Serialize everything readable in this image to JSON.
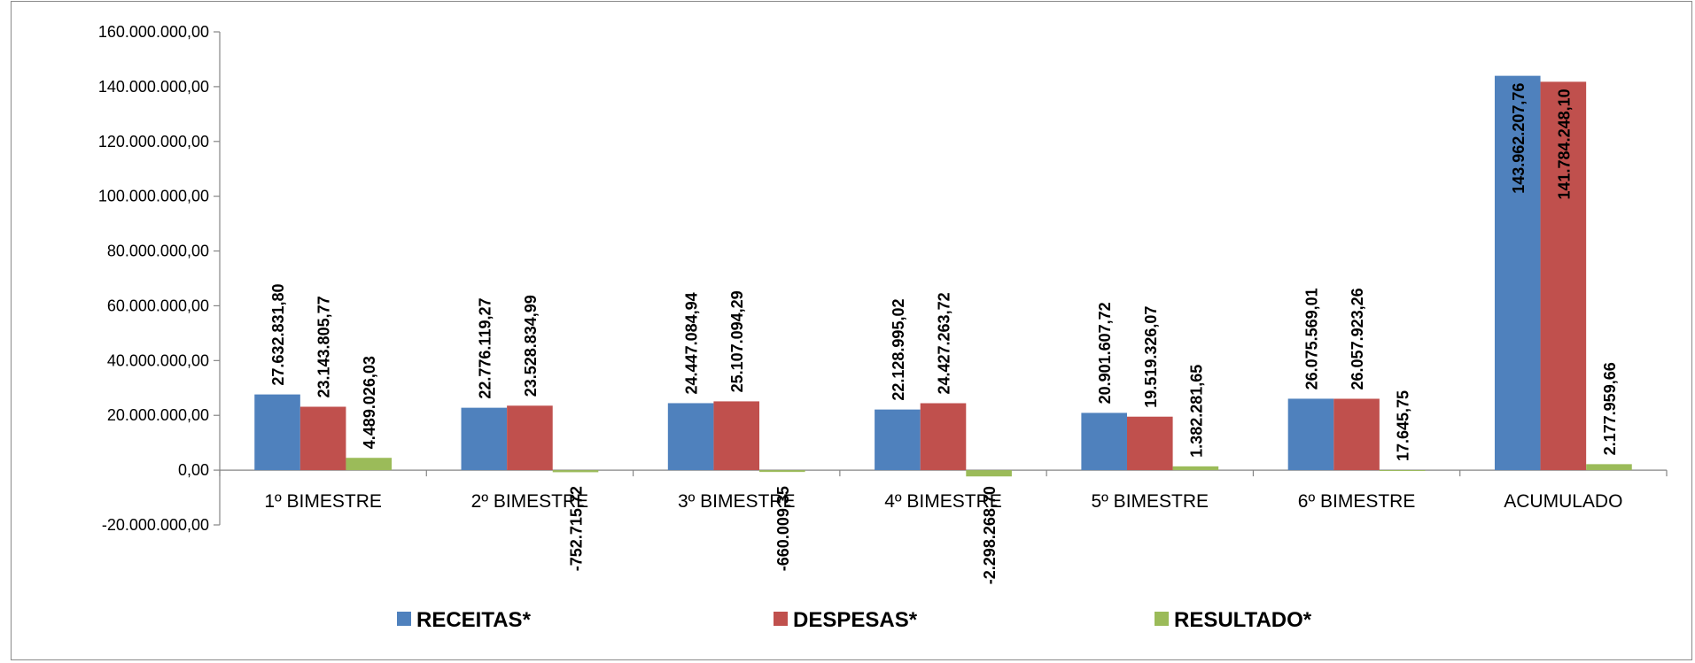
{
  "chart_data": {
    "type": "bar",
    "categories": [
      "1º BIMESTRE",
      "2º BIMESTRE",
      "3º BIMESTRE",
      "4º BIMESTRE",
      "5º BIMESTRE",
      "6º BIMESTRE",
      "ACUMULADO"
    ],
    "series": [
      {
        "name": "RECEITAS*",
        "color": "#4F81BD",
        "values": [
          27632831.8,
          22776119.27,
          24447084.94,
          22128995.02,
          20901607.72,
          26075569.01,
          143962207.76
        ],
        "labels": [
          "27.632.831,80",
          "22.776.119,27",
          "24.447.084,94",
          "22.128.995,02",
          "20.901.607,72",
          "26.075.569,01",
          "143.962.207,76"
        ]
      },
      {
        "name": "DESPESAS*",
        "color": "#C0504D",
        "values": [
          23143805.77,
          23528834.99,
          25107094.29,
          24427263.72,
          19519326.07,
          26057923.26,
          141784248.1
        ],
        "labels": [
          "23.143.805,77",
          "23.528.834,99",
          "25.107.094,29",
          "24.427.263,72",
          "19.519.326,07",
          "26.057.923,26",
          "141.784.248,10"
        ]
      },
      {
        "name": "RESULTADO*",
        "color": "#9BBB59",
        "values": [
          4489026.03,
          -752715.72,
          -660009.35,
          -2298268.7,
          1382281.65,
          17645.75,
          2177959.66
        ],
        "labels": [
          "4.489.026,03",
          "-752.715,72",
          "-660.009,35",
          "-2.298.268,70",
          "1.382.281,65",
          "17.645,75",
          "2.177.959,66"
        ]
      }
    ],
    "ylim": [
      -20000000,
      160000000
    ],
    "y_ticks": [
      -20000000,
      0,
      20000000,
      40000000,
      60000000,
      80000000,
      100000000,
      120000000,
      140000000,
      160000000
    ],
    "y_tick_labels": [
      "-20.000.000,00",
      "0,00",
      "20.000.000,00",
      "40.000.000,00",
      "60.000.000,00",
      "80.000.000,00",
      "100.000.000,00",
      "120.000.000,00",
      "140.000.000,00",
      "160.000.000,00"
    ],
    "grid": false,
    "legend_position": "bottom",
    "title": "",
    "xlabel": "",
    "ylabel": ""
  }
}
